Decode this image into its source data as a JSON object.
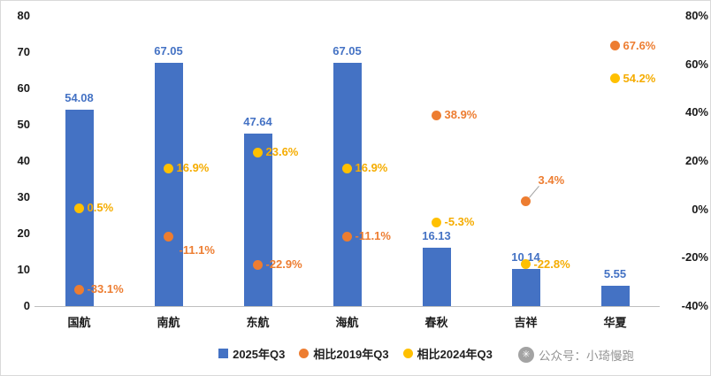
{
  "chart_data": {
    "type": "bar",
    "subtype": "column chart with dual-axis percentage markers",
    "title": "",
    "categories": [
      "国航",
      "南航",
      "东航",
      "海航",
      "春秋",
      "吉祥",
      "华夏"
    ],
    "bar_series": {
      "name": "2025年Q3",
      "color": "#4472C4",
      "axis": "left",
      "values": [
        54.08,
        67.05,
        47.64,
        67.05,
        16.13,
        10.14,
        5.55
      ],
      "value_labels": [
        "54.08",
        "67.05",
        "47.64",
        "67.05",
        "16.13",
        "10.14",
        "5.55"
      ]
    },
    "marker_series": [
      {
        "name": "相比2019年Q3",
        "color": "#ED7D31",
        "label_color": "#ED7D31",
        "axis": "right",
        "values_pct": [
          -33.1,
          -11.1,
          -22.9,
          -11.1,
          38.9,
          3.4,
          67.6
        ],
        "value_labels": [
          "-33.1%",
          "-11.1%",
          "-22.9%",
          "-11.1%",
          "38.9%",
          "3.4%",
          "67.6%"
        ],
        "label_pos": [
          "right",
          "below",
          "right",
          "right",
          "right",
          "above",
          "right"
        ]
      },
      {
        "name": "相比2024年Q3",
        "color": "#FFC000",
        "label_color": "#F5AC00",
        "axis": "right",
        "values_pct": [
          0.5,
          16.9,
          23.6,
          16.9,
          -5.3,
          -22.8,
          54.2
        ],
        "value_labels": [
          "0.5%",
          "16.9%",
          "23.6%",
          "16.9%",
          "-5.3%",
          "-22.8%",
          "54.2%"
        ],
        "label_pos": [
          "right",
          "right",
          "right",
          "right",
          "right",
          "right",
          "right"
        ]
      }
    ],
    "left_axis": {
      "min": 0,
      "max": 80,
      "tick_labels": [
        "80",
        "70",
        "60",
        "50",
        "40",
        "30",
        "20",
        "10",
        "0"
      ]
    },
    "right_axis": {
      "min": -40,
      "max": 80,
      "tick_labels": [
        "80%",
        "60%",
        "40%",
        "20%",
        "0%",
        "-20%",
        "-40%"
      ]
    },
    "legend": {
      "position": "bottom",
      "items": [
        {
          "label": "2025年Q3",
          "shape": "square",
          "color": "#4472C4"
        },
        {
          "label": "相比2019年Q3",
          "shape": "circle",
          "color": "#ED7D31"
        },
        {
          "label": "相比2024年Q3",
          "shape": "circle",
          "color": "#FFC000"
        }
      ]
    },
    "gridlines": false
  },
  "watermark": {
    "icon_glyph": "✳",
    "text": "公众号：小琦慢跑"
  }
}
